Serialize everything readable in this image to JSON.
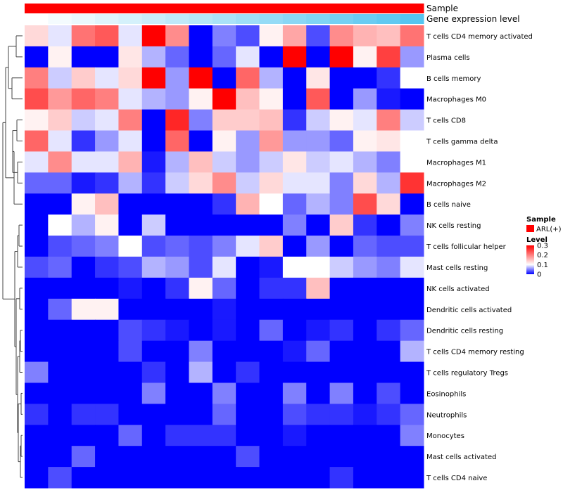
{
  "chart_data": {
    "type": "heatmap",
    "annotation_rows": [
      {
        "label": "Sample",
        "colors": "uniform",
        "color": "#ff0000"
      },
      {
        "label": "Gene expression level",
        "gradient": [
          "#ffffff",
          "#55c5f0"
        ]
      }
    ],
    "rows": [
      "T cells CD4 memory activated",
      "Plasma cells",
      "B cells memory",
      "Macrophages M0",
      "T cells CD8",
      "T cells gamma delta",
      "Macrophages M1",
      "Macrophages M2",
      "B cells naive",
      "NK cells resting",
      "T cells follicular helper",
      "Mast cells resting",
      "NK cells activated",
      "Dendritic cells activated",
      "Dendritic cells resting",
      "T cells CD4 memory resting",
      "T cells regulatory  Tregs",
      "Eosinophils",
      "Neutrophils",
      "Monocytes",
      "Mast cells activated",
      "T cells CD4 naive"
    ],
    "values": [
      [
        0.13,
        0.09,
        0.21,
        0.23,
        0.09,
        0.3,
        0.19,
        0.0,
        0.05,
        0.03,
        0.11,
        0.17,
        0.03,
        0.19,
        0.16,
        0.15,
        0.21
      ],
      [
        0.0,
        0.11,
        0.0,
        0.0,
        0.12,
        0.07,
        0.04,
        0.0,
        0.04,
        0.09,
        0.0,
        0.3,
        0.0,
        0.3,
        0.11,
        0.25,
        0.06
      ],
      [
        0.2,
        0.08,
        0.14,
        0.09,
        0.13,
        0.3,
        0.06,
        0.3,
        0.0,
        0.22,
        0.07,
        0.0,
        0.12,
        0.0,
        0.0,
        0.02,
        0.1
      ],
      [
        0.24,
        0.18,
        0.22,
        0.2,
        0.09,
        0.07,
        0.06,
        0.11,
        0.3,
        0.15,
        0.11,
        0.0,
        0.23,
        0.0,
        0.06,
        0.01,
        0.0
      ],
      [
        0.11,
        0.14,
        0.08,
        0.09,
        0.2,
        0.0,
        0.27,
        0.05,
        0.14,
        0.14,
        0.15,
        0.02,
        0.08,
        0.11,
        0.09,
        0.2,
        0.08
      ],
      [
        0.22,
        0.09,
        0.02,
        0.06,
        0.09,
        0.0,
        0.22,
        0.0,
        0.11,
        0.06,
        0.18,
        0.06,
        0.06,
        0.04,
        0.11,
        0.12,
        0.1
      ],
      [
        0.09,
        0.19,
        0.09,
        0.09,
        0.16,
        0.01,
        0.07,
        0.15,
        0.08,
        0.06,
        0.08,
        0.12,
        0.08,
        0.09,
        0.07,
        0.05,
        0.1
      ],
      [
        0.04,
        0.04,
        0.01,
        0.02,
        0.07,
        0.02,
        0.08,
        0.13,
        0.19,
        0.08,
        0.13,
        0.09,
        0.09,
        0.05,
        0.13,
        0.07,
        0.26
      ],
      [
        0.0,
        0.0,
        0.11,
        0.15,
        0.0,
        0.0,
        0.0,
        0.0,
        0.02,
        0.16,
        0.1,
        0.04,
        0.07,
        0.05,
        0.24,
        0.13,
        0.0
      ],
      [
        0.0,
        0.1,
        0.07,
        0.11,
        0.0,
        0.08,
        0.0,
        0.0,
        0.0,
        0.0,
        0.0,
        0.05,
        0.0,
        0.14,
        0.02,
        0.0,
        0.05
      ],
      [
        0.0,
        0.03,
        0.04,
        0.05,
        0.1,
        0.03,
        0.04,
        0.03,
        0.05,
        0.09,
        0.14,
        0.0,
        0.06,
        0.0,
        0.04,
        0.03,
        0.03
      ],
      [
        0.03,
        0.04,
        0.0,
        0.02,
        0.03,
        0.07,
        0.06,
        0.03,
        0.09,
        0.0,
        0.01,
        0.1,
        0.1,
        0.08,
        0.06,
        0.05,
        0.09
      ],
      [
        0.0,
        0.0,
        0.0,
        0.0,
        0.01,
        0.0,
        0.02,
        0.11,
        0.04,
        0.0,
        0.02,
        0.02,
        0.15,
        0.0,
        0.0,
        0.0,
        0.0
      ],
      [
        0.0,
        0.04,
        0.11,
        0.11,
        0.0,
        0.0,
        0.0,
        0.0,
        0.01,
        0.0,
        0.0,
        0.0,
        0.0,
        0.0,
        0.0,
        0.0,
        0.0
      ],
      [
        0.0,
        0.0,
        0.0,
        0.0,
        0.03,
        0.02,
        0.01,
        0.0,
        0.01,
        0.0,
        0.04,
        0.0,
        0.01,
        0.02,
        0.0,
        0.02,
        0.04
      ],
      [
        0.0,
        0.0,
        0.0,
        0.0,
        0.03,
        0.0,
        0.0,
        0.05,
        0.0,
        0.0,
        0.0,
        0.01,
        0.04,
        0.0,
        0.0,
        0.0,
        0.07
      ],
      [
        0.05,
        0.0,
        0.0,
        0.0,
        0.0,
        0.02,
        0.0,
        0.07,
        0.0,
        0.02,
        0.0,
        0.0,
        0.0,
        0.0,
        0.0,
        0.0,
        0.0
      ],
      [
        0.0,
        0.0,
        0.0,
        0.0,
        0.0,
        0.05,
        0.0,
        0.0,
        0.05,
        0.0,
        0.0,
        0.05,
        0.0,
        0.05,
        0.0,
        0.03,
        0.0
      ],
      [
        0.02,
        0.0,
        0.02,
        0.02,
        0.0,
        0.0,
        0.0,
        0.0,
        0.04,
        0.0,
        0.0,
        0.03,
        0.02,
        0.02,
        0.01,
        0.02,
        0.04
      ],
      [
        0.0,
        0.0,
        0.0,
        0.0,
        0.04,
        0.0,
        0.02,
        0.02,
        0.02,
        0.0,
        0.0,
        0.01,
        0.0,
        0.0,
        0.0,
        0.0,
        0.05
      ],
      [
        0.0,
        0.0,
        0.04,
        0.0,
        0.0,
        0.0,
        0.0,
        0.0,
        0.0,
        0.03,
        0.0,
        0.0,
        0.0,
        0.0,
        0.0,
        0.0,
        0.0
      ],
      [
        0.0,
        0.03,
        0.0,
        0.0,
        0.0,
        0.0,
        0.0,
        0.0,
        0.0,
        0.0,
        0.0,
        0.0,
        0.0,
        0.02,
        0.0,
        0.0,
        0.0
      ]
    ],
    "color_scale": {
      "min": 0,
      "mid": 0.1,
      "max": 0.3,
      "colors": [
        "#0000ff",
        "#ffffff",
        "#ff0000"
      ]
    },
    "legend": {
      "sample_title": "Sample",
      "sample_entry": "ARL(+)",
      "sample_color": "#ff0000",
      "level_title": "Level",
      "level_ticks": [
        "0.3",
        "0.2",
        "0.1",
        "0"
      ],
      "level_tick_values": [
        0.3,
        0.2,
        0.1,
        0
      ]
    },
    "row_dendrogram": true,
    "title": "",
    "xlabel": "",
    "ylabel": ""
  }
}
